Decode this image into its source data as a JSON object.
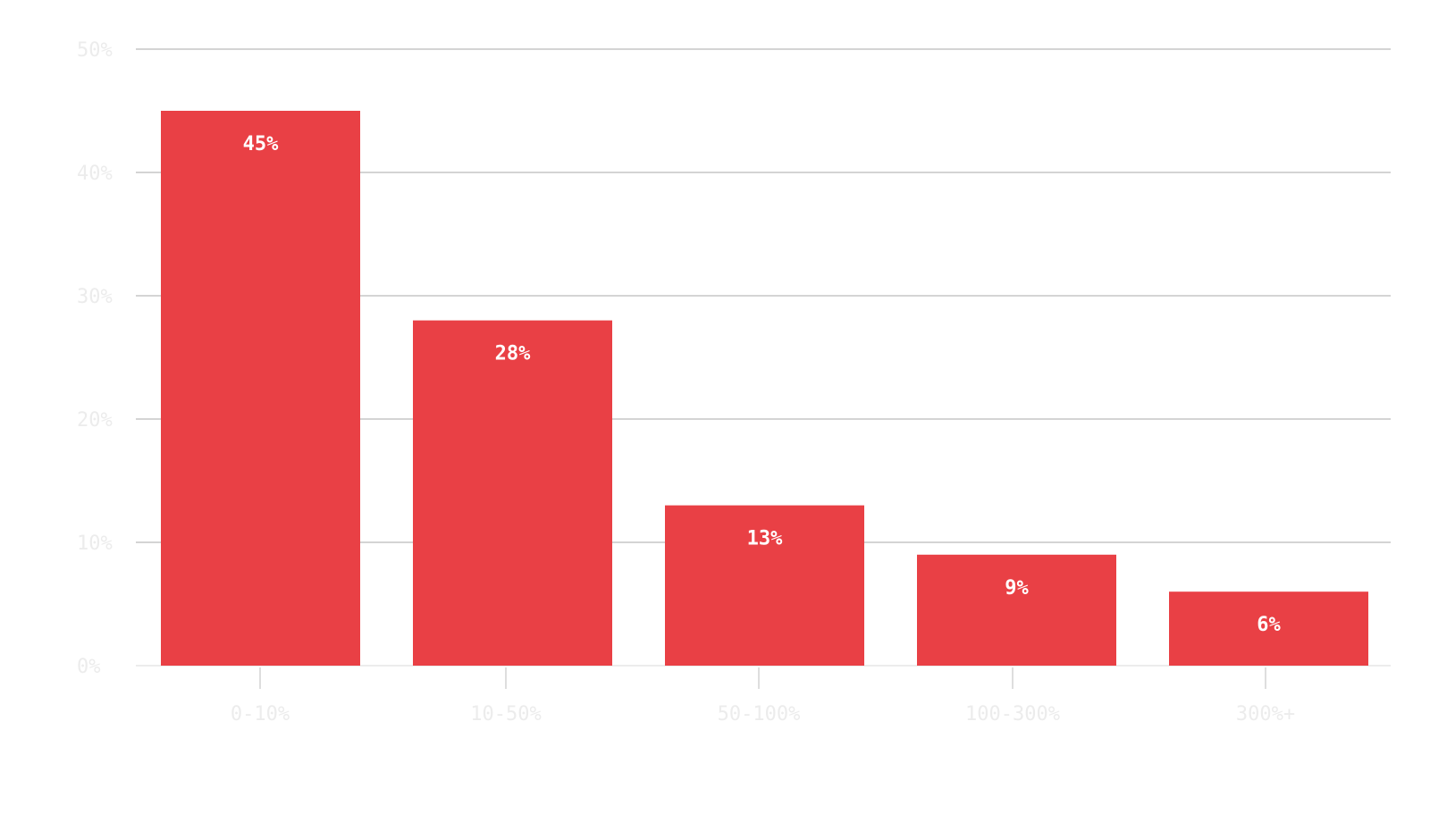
{
  "chart_data": {
    "type": "bar",
    "title": "",
    "xlabel": "",
    "ylabel": "",
    "categories": [
      "0-10%",
      "10-50%",
      "50-100%",
      "100-300%",
      "300%+"
    ],
    "values": [
      45,
      28,
      13,
      9,
      6
    ],
    "data_labels": [
      "45%",
      "28%",
      "13%",
      "9%",
      "6%"
    ],
    "yticks": [
      0,
      10,
      20,
      30,
      40,
      50
    ],
    "ytick_labels": [
      "0%",
      "10%",
      "20%",
      "30%",
      "40%",
      "50%"
    ],
    "ylim": [
      0,
      50
    ],
    "grid": true,
    "bar_color": "#e94045",
    "label_color_inside": "#ffffff",
    "label_color_outside": "#ececec"
  }
}
